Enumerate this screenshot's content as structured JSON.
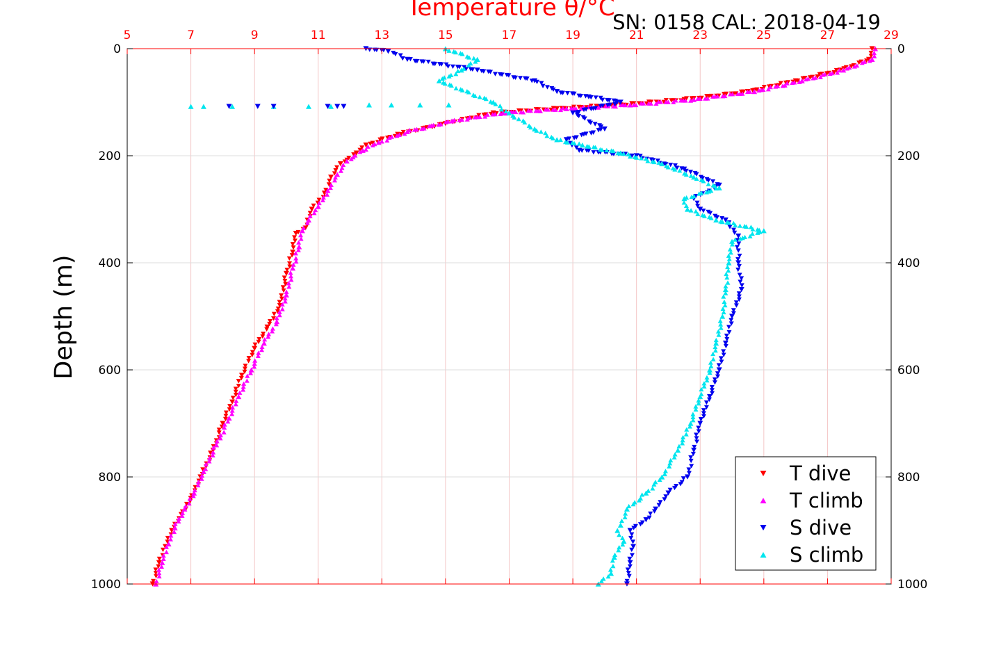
{
  "chart_data": {
    "type": "scatter",
    "title": "Temperature θ/°C",
    "annotation": "SN: 0158  CAL: 2018-04-19",
    "ylabel": "Depth (m)",
    "xlim": [
      5,
      29
    ],
    "ylim": [
      1000,
      0
    ],
    "y_reversed": true,
    "x_ticks": [
      "5",
      "7",
      "9",
      "11",
      "13",
      "15",
      "17",
      "19",
      "21",
      "23",
      "25",
      "27",
      "29"
    ],
    "y_ticks": [
      "0",
      "200",
      "400",
      "600",
      "800",
      "1000"
    ],
    "grid": true,
    "legend_position": "bottom-right",
    "colors": {
      "t_dive": "#ff0000",
      "t_climb": "#ff00ff",
      "s_dive": "#0000ee",
      "s_climb": "#00e5ee",
      "top_axis": "#ff0000"
    },
    "series": [
      {
        "name": "T dive",
        "marker": "triangle-down",
        "color": "#ff0000",
        "x": [
          28.4,
          28.3,
          27.4,
          26.0,
          24.5,
          22.5,
          20.5,
          18.5,
          16.5,
          15.0,
          13.5,
          12.5,
          12.2,
          11.7,
          11.4,
          11.2,
          10.8,
          10.6,
          10.3,
          10.2,
          10.0,
          9.8,
          9.4,
          9.0,
          8.6,
          8.3,
          8.0,
          7.7,
          7.3,
          7.0,
          6.7,
          6.4,
          6.2,
          6.0,
          5.8
        ],
        "y": [
          0,
          20,
          40,
          60,
          80,
          95,
          105,
          112,
          120,
          140,
          160,
          180,
          195,
          215,
          240,
          270,
          300,
          335,
          345,
          380,
          420,
          480,
          520,
          560,
          610,
          660,
          700,
          750,
          800,
          840,
          870,
          900,
          930,
          960,
          1000
        ]
      },
      {
        "name": "T climb",
        "marker": "triangle-up",
        "color": "#ff00ff",
        "x": [
          28.5,
          28.4,
          27.5,
          26.2,
          24.7,
          22.8,
          20.8,
          18.8,
          16.8,
          15.2,
          13.8,
          12.9,
          12.4,
          11.9,
          11.6,
          11.3,
          11.0,
          10.7,
          10.5,
          10.4,
          10.2,
          10.0,
          9.7,
          9.3,
          8.9,
          8.5,
          8.2,
          7.8,
          7.4,
          7.1,
          6.8,
          6.5,
          6.3,
          6.1,
          5.9
        ],
        "y": [
          0,
          20,
          40,
          60,
          80,
          95,
          105,
          112,
          120,
          135,
          155,
          175,
          190,
          210,
          235,
          265,
          295,
          320,
          340,
          370,
          410,
          460,
          510,
          550,
          600,
          650,
          690,
          740,
          790,
          830,
          860,
          895,
          925,
          960,
          1000
        ]
      },
      {
        "name": "S dive",
        "marker": "triangle-down",
        "color": "#0000ee",
        "x": [
          12.5,
          13.2,
          13.8,
          16.0,
          17.8,
          18.5,
          19.5,
          20.5,
          19.0,
          20.0,
          18.8,
          19.2,
          21.0,
          22.5,
          23.6,
          22.8,
          23.0,
          23.8,
          24.2,
          24.2,
          24.3,
          24.0,
          23.8,
          23.6,
          23.3,
          23.0,
          22.8,
          22.6,
          22.0,
          21.6,
          21.3,
          20.8,
          20.9,
          20.8,
          20.7
        ],
        "y": [
          0,
          5,
          20,
          40,
          60,
          80,
          90,
          100,
          120,
          150,
          170,
          190,
          200,
          225,
          255,
          280,
          300,
          320,
          350,
          400,
          450,
          500,
          550,
          600,
          650,
          700,
          750,
          800,
          830,
          860,
          880,
          900,
          930,
          960,
          1000
        ]
      },
      {
        "name": "S climb",
        "marker": "triangle-up",
        "color": "#00e5ee",
        "x": [
          15.0,
          16.0,
          15.5,
          14.8,
          16.5,
          17.0,
          17.8,
          18.5,
          19.3,
          20.5,
          21.8,
          22.8,
          23.6,
          22.5,
          22.6,
          23.5,
          25.0,
          24.0,
          23.9,
          23.8,
          23.7,
          23.5,
          23.3,
          23.0,
          22.7,
          22.3,
          21.8,
          21.3,
          20.7,
          20.5,
          20.4,
          20.6,
          20.3,
          20.2,
          19.8
        ],
        "y": [
          0,
          20,
          40,
          60,
          100,
          120,
          150,
          170,
          180,
          195,
          215,
          240,
          260,
          280,
          300,
          320,
          340,
          360,
          400,
          450,
          500,
          550,
          600,
          650,
          700,
          750,
          800,
          830,
          860,
          890,
          900,
          920,
          950,
          980,
          1000
        ]
      }
    ],
    "outliers": {
      "s_climb": {
        "x": [
          7.0,
          7.4,
          8.3,
          9.6,
          10.7,
          11.4,
          12.6,
          13.3,
          14.2,
          15.1
        ],
        "y": [
          108,
          108,
          108,
          108,
          108,
          108,
          105,
          105,
          105,
          105
        ]
      },
      "s_dive": {
        "x": [
          8.2,
          9.1,
          9.6,
          11.3,
          11.6,
          11.8
        ],
        "y": [
          108,
          108,
          108,
          108,
          108,
          108
        ]
      }
    },
    "legend": [
      "T dive",
      "T climb",
      "S dive",
      "S climb"
    ]
  }
}
